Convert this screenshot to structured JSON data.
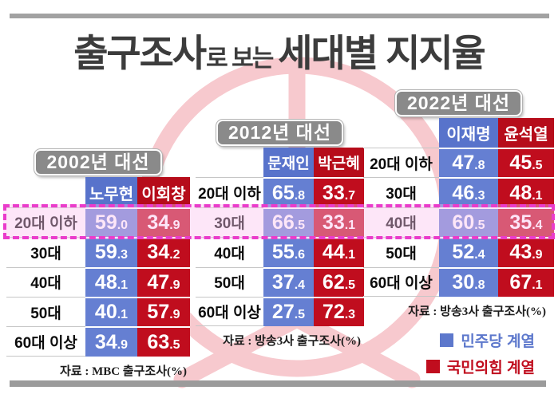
{
  "title": {
    "big1": "출구조사",
    "small": "로 보는",
    "big2": "세대별 지지율"
  },
  "chart_data": {
    "type": "table",
    "tables": [
      {
        "title": "2002년 대선",
        "candidates": [
          "노무현",
          "이회창"
        ],
        "rows": [
          [
            "20대 이하",
            "59.0",
            "34.9"
          ],
          [
            "30대",
            "59.3",
            "34.2"
          ],
          [
            "40대",
            "48.1",
            "47.9"
          ],
          [
            "50대",
            "40.1",
            "57.9"
          ],
          [
            "60대 이상",
            "34.9",
            "63.5"
          ]
        ],
        "highlighted_row": "20대 이하",
        "source": "자료 : MBC 출구조사(%)"
      },
      {
        "title": "2012년 대선",
        "candidates": [
          "문재인",
          "박근혜"
        ],
        "rows": [
          [
            "20대 이하",
            "65.8",
            "33.7"
          ],
          [
            "30대",
            "66.5",
            "33.1"
          ],
          [
            "40대",
            "55.6",
            "44.1"
          ],
          [
            "50대",
            "37.4",
            "62.5"
          ],
          [
            "60대 이상",
            "27.5",
            "72.3"
          ]
        ],
        "highlighted_row": "30대",
        "source": "자료 : 방송3사 출구조사(%)"
      },
      {
        "title": "2022년 대선",
        "candidates": [
          "이재명",
          "윤석열"
        ],
        "rows": [
          [
            "20대 이하",
            "47.8",
            "45.5"
          ],
          [
            "30대",
            "46.3",
            "48.1"
          ],
          [
            "40대",
            "60.5",
            "35.4"
          ],
          [
            "50대",
            "52.4",
            "43.9"
          ],
          [
            "60대 이상",
            "30.8",
            "67.1"
          ]
        ],
        "highlighted_row": "40대",
        "source": "자료 : 방송3사 출구조사(%)"
      }
    ],
    "legend": [
      {
        "label": "민주당 계열",
        "color": "#5d78cc"
      },
      {
        "label": "국민의힘 계열",
        "color": "#c00d1e"
      }
    ],
    "layout_hints": {
      "highlight_style": "magenta dashed band across all three tables",
      "value_unit_note": "(%)"
    }
  }
}
